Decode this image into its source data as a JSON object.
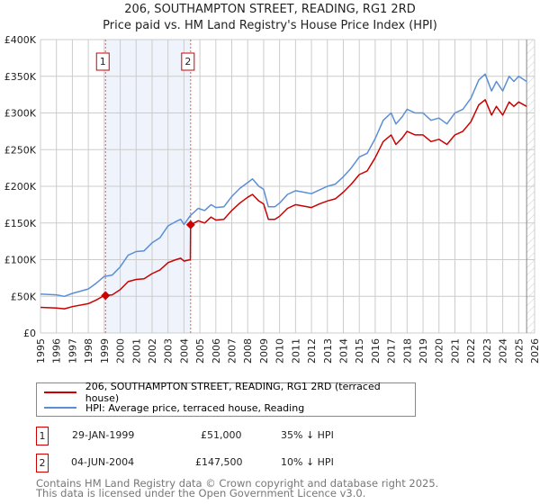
{
  "chart_data": {
    "type": "line",
    "title": "206, SOUTHAMPTON STREET, READING, RG1 2RD",
    "subtitle": "Price paid vs. HM Land Registry's House Price Index (HPI)",
    "xlim": [
      1995,
      2026
    ],
    "ylim": [
      0,
      400000
    ],
    "x_ticks": [
      "1995",
      "1996",
      "1997",
      "1998",
      "1999",
      "2000",
      "2001",
      "2002",
      "2003",
      "2004",
      "2005",
      "2006",
      "2007",
      "2008",
      "2009",
      "2010",
      "2011",
      "2012",
      "2013",
      "2014",
      "2015",
      "2016",
      "2017",
      "2018",
      "2019",
      "2020",
      "2021",
      "2022",
      "2023",
      "2024",
      "2025",
      "2026"
    ],
    "y_ticks": [
      {
        "v": 0,
        "label": "£0"
      },
      {
        "v": 50000,
        "label": "£50K"
      },
      {
        "v": 100000,
        "label": "£100K"
      },
      {
        "v": 150000,
        "label": "£150K"
      },
      {
        "v": 200000,
        "label": "£200K"
      },
      {
        "v": 250000,
        "label": "£250K"
      },
      {
        "v": 300000,
        "label": "£300K"
      },
      {
        "v": 350000,
        "label": "£350K"
      },
      {
        "v": 400000,
        "label": "£400K"
      }
    ],
    "grid": true,
    "data_end": 2025.5,
    "series": [
      {
        "name": "206, SOUTHAMPTON STREET, READING, RG1 2RD (terraced house)",
        "color": "#cc0000",
        "x": [
          1995,
          1996,
          1996.5,
          1997,
          1998,
          1998.5,
          1999,
          1999.5,
          2000,
          2000.5,
          2001,
          2001.5,
          2002,
          2002.5,
          2003,
          2003.5,
          2003.8,
          2004,
          2004.4,
          2004.42,
          2004.9,
          2005.3,
          2005.7,
          2006,
          2006.5,
          2007,
          2007.5,
          2008,
          2008.3,
          2008.7,
          2009,
          2009.3,
          2009.7,
          2010,
          2010.5,
          2011,
          2011.5,
          2012,
          2012.5,
          2013,
          2013.5,
          2014,
          2014.5,
          2015,
          2015.5,
          2016,
          2016.5,
          2017,
          2017.3,
          2017.7,
          2018,
          2018.5,
          2019,
          2019.5,
          2020,
          2020.5,
          2021,
          2021.5,
          2022,
          2022.5,
          2022.9,
          2023.3,
          2023.6,
          2024,
          2024.4,
          2024.7,
          2025,
          2025.5
        ],
        "values": [
          35,
          34,
          33,
          36,
          40,
          45,
          51,
          52,
          59,
          70,
          73,
          74,
          81,
          86,
          96,
          100,
          102,
          98,
          100,
          147.5,
          153,
          150,
          158,
          154,
          155,
          167,
          177,
          185,
          189,
          180,
          176,
          155,
          155,
          159,
          170,
          175,
          173,
          171,
          176,
          180,
          183,
          192,
          203,
          216,
          221,
          239,
          261,
          270,
          257,
          266,
          275,
          270,
          270,
          261,
          264,
          257,
          270,
          275,
          288,
          311,
          318,
          297,
          309,
          297,
          315,
          309,
          315,
          309
        ]
      },
      {
        "name": "HPI: Average price, terraced house, Reading",
        "color": "#5b8fd4",
        "x": [
          1995,
          1996,
          1996.5,
          1997,
          1998,
          1998.5,
          1999,
          1999.5,
          2000,
          2000.5,
          2001,
          2001.5,
          2002,
          2002.5,
          2003,
          2003.5,
          2003.8,
          2004,
          2004.4,
          2004.9,
          2005.3,
          2005.7,
          2006,
          2006.5,
          2007,
          2007.5,
          2008,
          2008.3,
          2008.7,
          2009,
          2009.3,
          2009.7,
          2010,
          2010.5,
          2011,
          2011.5,
          2012,
          2012.5,
          2013,
          2013.5,
          2014,
          2014.5,
          2015,
          2015.5,
          2016,
          2016.5,
          2017,
          2017.3,
          2017.7,
          2018,
          2018.5,
          2019,
          2019.5,
          2020,
          2020.5,
          2021,
          2021.5,
          2022,
          2022.5,
          2022.9,
          2023.3,
          2023.6,
          2024,
          2024.4,
          2024.7,
          2025,
          2025.5
        ],
        "values": [
          53,
          52,
          50,
          54,
          60,
          68,
          77,
          79,
          90,
          106,
          111,
          112,
          123,
          130,
          146,
          152,
          155,
          148,
          160,
          170,
          167,
          175,
          171,
          172,
          186,
          197,
          205,
          210,
          200,
          196,
          172,
          172,
          177,
          189,
          194,
          192,
          190,
          195,
          200,
          203,
          213,
          225,
          240,
          245,
          265,
          290,
          300,
          285,
          295,
          305,
          300,
          300,
          290,
          293,
          285,
          300,
          305,
          320,
          345,
          353,
          330,
          343,
          330,
          350,
          343,
          350,
          343
        ]
      }
    ],
    "value_unit": "£K",
    "sales": [
      {
        "id": "1",
        "x": 1999.08,
        "price": 51000,
        "date": "29-JAN-1999",
        "price_label": "£51,000",
        "hpi_diff": "35% ↓ HPI"
      },
      {
        "id": "2",
        "x": 2004.42,
        "price": 147500,
        "date": "04-JUN-2004",
        "price_label": "£147,500",
        "hpi_diff": "10% ↓ HPI"
      }
    ]
  },
  "footer": {
    "line1": "Contains HM Land Registry data © Crown copyright and database right 2025.",
    "line2": "This data is licensed under the Open Government Licence v3.0."
  }
}
